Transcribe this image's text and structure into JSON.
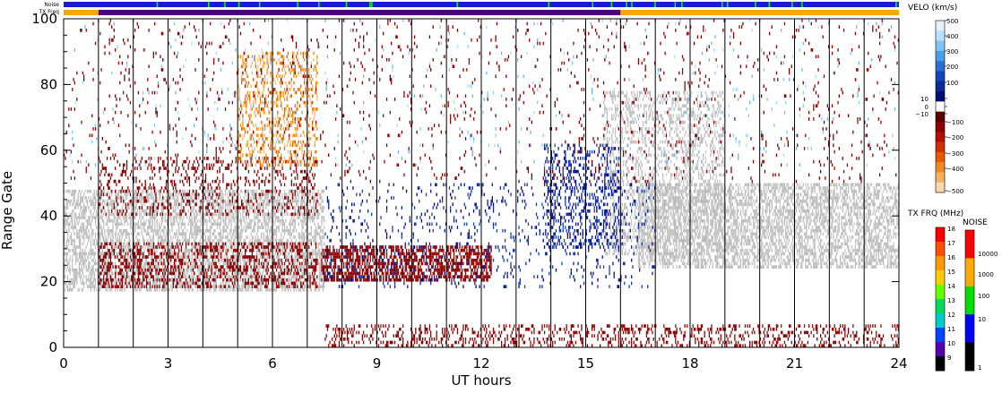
{
  "top_bars": {
    "noise_label": "Noise",
    "txfreq_label": "TX Freq"
  },
  "chart_data": {
    "type": "scatter",
    "title": "",
    "xlabel": "UT hours",
    "ylabel": "Range Gate",
    "xlim": [
      0,
      24
    ],
    "ylim": [
      0,
      100
    ],
    "x_ticks": [
      0,
      3,
      6,
      9,
      12,
      15,
      18,
      21,
      24
    ],
    "y_ticks": [
      0,
      20,
      40,
      60,
      80,
      100
    ],
    "grid": "vertical lines every hour",
    "colors": {
      "ground_scatter": "#c0c0c0",
      "neg_low": "#8b0000",
      "neg_mid": "#ff8c00",
      "neg_high": "#ffd6a8",
      "pos_low": "#00008b",
      "pos_high": "#87ceeb"
    },
    "regions": [
      {
        "name": "ground-scatter-morning",
        "kind": "ground",
        "x0": 0,
        "x1": 7.5,
        "y0": 17,
        "y1": 48,
        "density": 0.55
      },
      {
        "name": "ground-scatter-evening",
        "kind": "ground",
        "x0": 16.5,
        "x1": 24,
        "y0": 24,
        "y1": 50,
        "density": 0.55
      },
      {
        "name": "ground-scatter-diag",
        "kind": "ground",
        "x0": 15.5,
        "x1": 19,
        "y0": 28,
        "y1": 78,
        "density": 0.3
      },
      {
        "name": "red-band-morning",
        "kind": "neg_low",
        "x0": 1,
        "x1": 7.3,
        "y0": 18,
        "y1": 32,
        "density": 0.35
      },
      {
        "name": "red-band-midday",
        "kind": "neg_low",
        "x0": 7.4,
        "x1": 12.3,
        "y0": 20,
        "y1": 31,
        "density": 0.6
      },
      {
        "name": "red-upper-morning",
        "kind": "neg_low",
        "x0": 1,
        "x1": 7.3,
        "y0": 40,
        "y1": 58,
        "density": 0.18
      },
      {
        "name": "blue-arc",
        "kind": "pos_low",
        "x0": 13.8,
        "x1": 16,
        "y0": 30,
        "y1": 62,
        "density": 0.25
      },
      {
        "name": "blue-lower-scatter",
        "kind": "pos_low",
        "x0": 7.5,
        "x1": 17,
        "y0": 18,
        "y1": 50,
        "density": 0.08
      },
      {
        "name": "bottom-red-strip",
        "kind": "neg_low",
        "x0": 7.5,
        "x1": 24,
        "y0": 0,
        "y1": 7,
        "density": 0.25
      },
      {
        "name": "orange-arc",
        "kind": "neg_mid",
        "x0": 5,
        "x1": 7.3,
        "y0": 55,
        "y1": 90,
        "density": 0.28
      },
      {
        "name": "light-scatter",
        "kind": "pos_high",
        "x0": 0,
        "x1": 24,
        "y0": 55,
        "y1": 100,
        "density": 0.015
      },
      {
        "name": "dark-scatter-top",
        "kind": "neg_low",
        "x0": 0,
        "x1": 24,
        "y0": 50,
        "y1": 100,
        "density": 0.03
      }
    ],
    "velocity_colorbar": {
      "label": "VELO (km/s)",
      "ticks": [
        "500",
        "400",
        "300",
        "200",
        "100",
        "10",
        "0",
        "−10",
        "−100",
        "−200",
        "−300",
        "−400",
        "−500"
      ],
      "colors_top_to_bottom": [
        "#e0f2ff",
        "#b8e0ff",
        "#7fc4f5",
        "#4a9ee8",
        "#2a6fd6",
        "#1446b8",
        "#0a2a96",
        "#000f6e",
        "#ffffff",
        "#5a0000",
        "#8b0000",
        "#b01000",
        "#d03000",
        "#e85a00",
        "#f08a20",
        "#f5b060",
        "#fcd8b0"
      ]
    },
    "txfreq_colorbar": {
      "label": "TX FRQ (MHz)",
      "ticks": [
        "18",
        "17",
        "16",
        "15",
        "14",
        "13",
        "12",
        "11",
        "10",
        "9"
      ],
      "colors_top_to_bottom": [
        "#ff0000",
        "#ff5000",
        "#ff9900",
        "#ffcc00",
        "#66ff00",
        "#00dd55",
        "#00cccc",
        "#0044ff",
        "#5500aa",
        "#000000"
      ]
    },
    "noise_colorbar": {
      "label": "NOISE",
      "ticks": [
        "10000",
        "1000",
        "100",
        "10",
        "1"
      ],
      "colors_top_to_bottom": [
        "#ff0000",
        "#ffaa00",
        "#00dd00",
        "#0000ff",
        "#000000"
      ]
    },
    "top_status": {
      "noise_bar_color": "#1a1ad6",
      "noise_tick_color": "#00ff00",
      "txfreq_segments": [
        {
          "x0": 0,
          "x1": 1,
          "color": "#ffa500"
        },
        {
          "x0": 1,
          "x1": 16,
          "color": "#4b0082"
        },
        {
          "x0": 16,
          "x1": 24,
          "color": "#ffa500"
        }
      ]
    }
  }
}
